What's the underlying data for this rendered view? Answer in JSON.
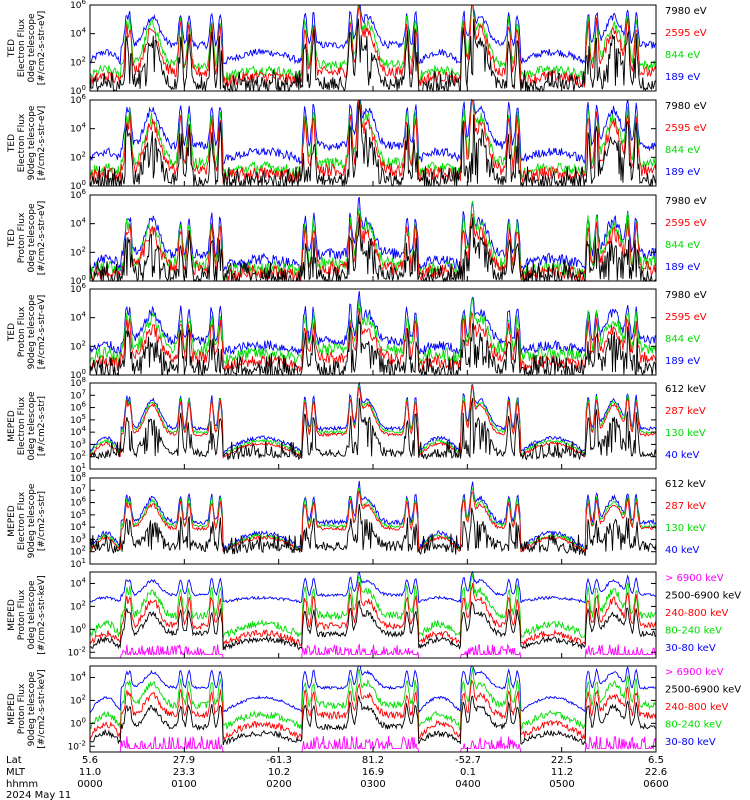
{
  "chart_data": {
    "type": "line",
    "x_ticks": [
      "0000",
      "0100",
      "0200",
      "0300",
      "0400",
      "0500",
      "0600"
    ],
    "footer": {
      "rows": [
        {
          "label": "Lat",
          "values": [
            "5.6",
            "27.9",
            "-61.3",
            "81.2",
            "-52.7",
            "22.5",
            "6.5"
          ]
        },
        {
          "label": "MLT",
          "values": [
            "11.0",
            "23.3",
            "10.2",
            "16.9",
            "0.1",
            "11.2",
            "22.6"
          ]
        },
        {
          "label": "hhmm",
          "values": [
            "0000",
            "0100",
            "0200",
            "0300",
            "0400",
            "0500",
            "0600"
          ]
        }
      ],
      "date": "2024 May 11"
    },
    "panels": [
      {
        "ylabel": [
          "TED",
          "Electron Flux",
          "0deg telescope",
          "[#/cm2-s-str-eV]"
        ],
        "yticks": [
          {
            "base": "10",
            "exp": "0"
          },
          {
            "base": "10",
            "exp": "2"
          },
          {
            "base": "10",
            "exp": "4"
          },
          {
            "base": "10",
            "exp": "6"
          }
        ],
        "ylim": [
          0,
          6
        ],
        "legend": [
          {
            "text": "7980 eV",
            "color": "#000000"
          },
          {
            "text": "2595 eV",
            "color": "#ff0000"
          },
          {
            "text": "844 eV",
            "color": "#00dd00"
          },
          {
            "text": "189 eV",
            "color": "#0000ff"
          }
        ],
        "series": [
          {
            "color": "#0000ff",
            "bg": 3.2,
            "peak": 5.4,
            "floor": 2.0,
            "noise": 0.25,
            "floorMode": "band"
          },
          {
            "color": "#00dd00",
            "bg": 1.8,
            "peak": 5.0,
            "floor": 1.0,
            "noise": 0.35,
            "floorMode": "band"
          },
          {
            "color": "#ff0000",
            "bg": 1.3,
            "peak": 4.6,
            "floor": 0.6,
            "noise": 0.4,
            "floorMode": "band"
          },
          {
            "color": "#000000",
            "bg": 0.5,
            "peak": 3.9,
            "floor": 0.1,
            "noise": 0.5,
            "floorMode": "spiky"
          }
        ]
      },
      {
        "ylabel": [
          "TED",
          "Electron Flux",
          "90deg telescope",
          "[#/cm2-s-str-eV]"
        ],
        "yticks": [
          {
            "base": "10",
            "exp": "0"
          },
          {
            "base": "10",
            "exp": "2"
          },
          {
            "base": "10",
            "exp": "4"
          },
          {
            "base": "10",
            "exp": "6"
          }
        ],
        "ylim": [
          0,
          6
        ],
        "legend": [
          {
            "text": "7980 eV",
            "color": "#000000"
          },
          {
            "text": "2595 eV",
            "color": "#ff0000"
          },
          {
            "text": "844 eV",
            "color": "#00dd00"
          },
          {
            "text": "189 eV",
            "color": "#0000ff"
          }
        ],
        "series": [
          {
            "color": "#0000ff",
            "bg": 2.8,
            "peak": 5.6,
            "floor": 1.8,
            "noise": 0.3,
            "floorMode": "band"
          },
          {
            "color": "#00dd00",
            "bg": 1.6,
            "peak": 5.1,
            "floor": 0.9,
            "noise": 0.4,
            "floorMode": "band"
          },
          {
            "color": "#ff0000",
            "bg": 1.1,
            "peak": 4.7,
            "floor": 0.6,
            "noise": 0.45,
            "floorMode": "band"
          },
          {
            "color": "#000000",
            "bg": 0.4,
            "peak": 4.0,
            "floor": 0.1,
            "noise": 0.5,
            "floorMode": "spiky"
          }
        ]
      },
      {
        "ylabel": [
          "TED",
          "Proton Flux",
          "0deg telescope",
          "[#/cm2-s-str-eV]"
        ],
        "yticks": [
          {
            "base": "10",
            "exp": "0"
          },
          {
            "base": "10",
            "exp": "2"
          },
          {
            "base": "10",
            "exp": "4"
          },
          {
            "base": "10",
            "exp": "6"
          }
        ],
        "ylim": [
          0,
          6
        ],
        "legend": [
          {
            "text": "7980 eV",
            "color": "#000000"
          },
          {
            "text": "2595 eV",
            "color": "#ff0000"
          },
          {
            "text": "844 eV",
            "color": "#00dd00"
          },
          {
            "text": "189 eV",
            "color": "#0000ff"
          }
        ],
        "series": [
          {
            "color": "#0000ff",
            "bg": 1.9,
            "peak": 4.5,
            "floor": 1.0,
            "noise": 0.4,
            "floorMode": "band"
          },
          {
            "color": "#00dd00",
            "bg": 1.2,
            "peak": 4.1,
            "floor": 0.5,
            "noise": 0.5,
            "floorMode": "band"
          },
          {
            "color": "#ff0000",
            "bg": 0.9,
            "peak": 3.6,
            "floor": 0.3,
            "noise": 0.5,
            "floorMode": "band"
          },
          {
            "color": "#000000",
            "bg": 0.4,
            "peak": 3.0,
            "floor": 0.0,
            "noise": 0.6,
            "floorMode": "spiky"
          }
        ]
      },
      {
        "ylabel": [
          "TED",
          "Proton Flux",
          "90deg telescope",
          "[#/cm2-s-str-eV]"
        ],
        "yticks": [
          {
            "base": "10",
            "exp": "0"
          },
          {
            "base": "10",
            "exp": "2"
          },
          {
            "base": "10",
            "exp": "4"
          },
          {
            "base": "10",
            "exp": "6"
          }
        ],
        "ylim": [
          0,
          6
        ],
        "legend": [
          {
            "text": "7980 eV",
            "color": "#000000"
          },
          {
            "text": "2595 eV",
            "color": "#ff0000"
          },
          {
            "text": "844 eV",
            "color": "#00dd00"
          },
          {
            "text": "189 eV",
            "color": "#0000ff"
          }
        ],
        "series": [
          {
            "color": "#0000ff",
            "bg": 2.4,
            "peak": 4.6,
            "floor": 1.6,
            "noise": 0.35,
            "floorMode": "band"
          },
          {
            "color": "#00dd00",
            "bg": 1.8,
            "peak": 4.1,
            "floor": 1.1,
            "noise": 0.45,
            "floorMode": "band"
          },
          {
            "color": "#ff0000",
            "bg": 1.2,
            "peak": 3.5,
            "floor": 0.6,
            "noise": 0.45,
            "floorMode": "band"
          },
          {
            "color": "#000000",
            "bg": 0.5,
            "peak": 2.8,
            "floor": 0.0,
            "noise": 0.6,
            "floorMode": "spiky"
          }
        ]
      },
      {
        "ylabel": [
          "MEPED",
          "Electron Flux",
          "0deg telescope",
          "[#/cm2-s-str]"
        ],
        "yticks": [
          {
            "base": "10",
            "exp": "1"
          },
          {
            "base": "10",
            "exp": "2"
          },
          {
            "base": "10",
            "exp": "3"
          },
          {
            "base": "10",
            "exp": "4"
          },
          {
            "base": "10",
            "exp": "5"
          },
          {
            "base": "10",
            "exp": "6"
          },
          {
            "base": "10",
            "exp": "7"
          },
          {
            "base": "10",
            "exp": "8"
          }
        ],
        "ylim": [
          1,
          8
        ],
        "legend": [
          {
            "text": "612 keV",
            "color": "#000000"
          },
          {
            "text": "287 keV",
            "color": "#ff0000"
          },
          {
            "text": "130 keV",
            "color": "#00dd00"
          },
          {
            "text": "40 keV",
            "color": "#0000ff"
          }
        ],
        "series": [
          {
            "color": "#0000ff",
            "bg": 4.3,
            "peak": 6.9,
            "floor": 2.4,
            "noise": 0.15,
            "floorMode": "band"
          },
          {
            "color": "#00dd00",
            "bg": 4.0,
            "peak": 6.7,
            "floor": 2.2,
            "noise": 0.12,
            "floorMode": "band"
          },
          {
            "color": "#ff0000",
            "bg": 3.8,
            "peak": 6.5,
            "floor": 2.0,
            "noise": 0.12,
            "floorMode": "band"
          },
          {
            "color": "#000000",
            "bg": 2.3,
            "peak": 5.4,
            "floor": 2.0,
            "noise": 0.3,
            "floorMode": "spiky"
          }
        ]
      },
      {
        "ylabel": [
          "MEPED",
          "Electron Flux",
          "90deg telescope",
          "[#/cm2-s-str]"
        ],
        "yticks": [
          {
            "base": "10",
            "exp": "1"
          },
          {
            "base": "10",
            "exp": "2"
          },
          {
            "base": "10",
            "exp": "3"
          },
          {
            "base": "10",
            "exp": "4"
          },
          {
            "base": "10",
            "exp": "5"
          },
          {
            "base": "10",
            "exp": "6"
          },
          {
            "base": "10",
            "exp": "7"
          },
          {
            "base": "10",
            "exp": "8"
          }
        ],
        "ylim": [
          1,
          8
        ],
        "legend": [
          {
            "text": "612 keV",
            "color": "#000000"
          },
          {
            "text": "287 keV",
            "color": "#ff0000"
          },
          {
            "text": "130 keV",
            "color": "#00dd00"
          },
          {
            "text": "40 keV",
            "color": "#0000ff"
          }
        ],
        "series": [
          {
            "color": "#0000ff",
            "bg": 4.4,
            "peak": 6.6,
            "floor": 2.2,
            "noise": 0.2,
            "floorMode": "band"
          },
          {
            "color": "#00dd00",
            "bg": 4.1,
            "peak": 6.3,
            "floor": 2.1,
            "noise": 0.15,
            "floorMode": "band"
          },
          {
            "color": "#ff0000",
            "bg": 3.9,
            "peak": 6.0,
            "floor": 2.0,
            "noise": 0.15,
            "floorMode": "band"
          },
          {
            "color": "#000000",
            "bg": 2.5,
            "peak": 4.6,
            "floor": 2.0,
            "noise": 0.35,
            "floorMode": "spiky"
          }
        ]
      },
      {
        "ylabel": [
          "MEPED",
          "Proton Flux",
          "0deg telescope",
          "[#/cm2-s-str-keV]"
        ],
        "yticks": [
          {
            "base": "10",
            "exp": "-2"
          },
          {
            "base": "10",
            "exp": "0"
          },
          {
            "base": "10",
            "exp": "2"
          },
          {
            "base": "10",
            "exp": "4"
          }
        ],
        "ylim": [
          -2.5,
          5
        ],
        "legend": [
          {
            "text": "> 6900 keV",
            "color": "#ff00ff"
          },
          {
            "text": "2500-6900 keV",
            "color": "#000000"
          },
          {
            "text": "240-800 keV",
            "color": "#ff0000"
          },
          {
            "text": "80-240 keV",
            "color": "#00dd00"
          },
          {
            "text": "30-80 keV",
            "color": "#0000ff"
          }
        ],
        "series": [
          {
            "color": "#0000ff",
            "bg": 3.0,
            "peak": 4.4,
            "floor": 2.4,
            "noise": 0.12,
            "floorMode": "band"
          },
          {
            "color": "#00dd00",
            "bg": 1.2,
            "peak": 3.6,
            "floor": -0.6,
            "noise": 0.35,
            "floorMode": "band"
          },
          {
            "color": "#ff0000",
            "bg": 0.3,
            "peak": 2.8,
            "floor": -1.3,
            "noise": 0.3,
            "floorMode": "band"
          },
          {
            "color": "#000000",
            "bg": -0.4,
            "peak": 1.6,
            "floor": -1.6,
            "noise": 0.25,
            "floorMode": "band"
          },
          {
            "color": "#ff00ff",
            "bg": -2.0,
            "peak": -1.3,
            "floor": -2.2,
            "noise": 0.15,
            "floorMode": "magenta"
          }
        ]
      },
      {
        "ylabel": [
          "MEPED",
          "Proton Flux",
          "90deg telescope",
          "[#/cm2-s-str-keV]"
        ],
        "yticks": [
          {
            "base": "10",
            "exp": "-2"
          },
          {
            "base": "10",
            "exp": "0"
          },
          {
            "base": "10",
            "exp": "2"
          },
          {
            "base": "10",
            "exp": "4"
          }
        ],
        "ylim": [
          -2.5,
          5
        ],
        "legend": [
          {
            "text": "> 6900 keV",
            "color": "#ff00ff"
          },
          {
            "text": "2500-6900 keV",
            "color": "#000000"
          },
          {
            "text": "240-800 keV",
            "color": "#ff0000"
          },
          {
            "text": "80-240 keV",
            "color": "#00dd00"
          },
          {
            "text": "30-80 keV",
            "color": "#0000ff"
          }
        ],
        "series": [
          {
            "color": "#0000ff",
            "bg": 3.1,
            "peak": 4.6,
            "floor": 1.0,
            "noise": 0.12,
            "floorMode": "band"
          },
          {
            "color": "#00dd00",
            "bg": 1.6,
            "peak": 3.7,
            "floor": -0.4,
            "noise": 0.3,
            "floorMode": "band"
          },
          {
            "color": "#ff0000",
            "bg": 0.7,
            "peak": 2.7,
            "floor": -1.2,
            "noise": 0.3,
            "floorMode": "band"
          },
          {
            "color": "#000000",
            "bg": -0.3,
            "peak": 1.6,
            "floor": -1.7,
            "noise": 0.25,
            "floorMode": "band"
          },
          {
            "color": "#ff00ff",
            "bg": -1.9,
            "peak": -1.1,
            "floor": -2.2,
            "noise": 0.15,
            "floorMode": "magenta"
          }
        ]
      }
    ]
  }
}
